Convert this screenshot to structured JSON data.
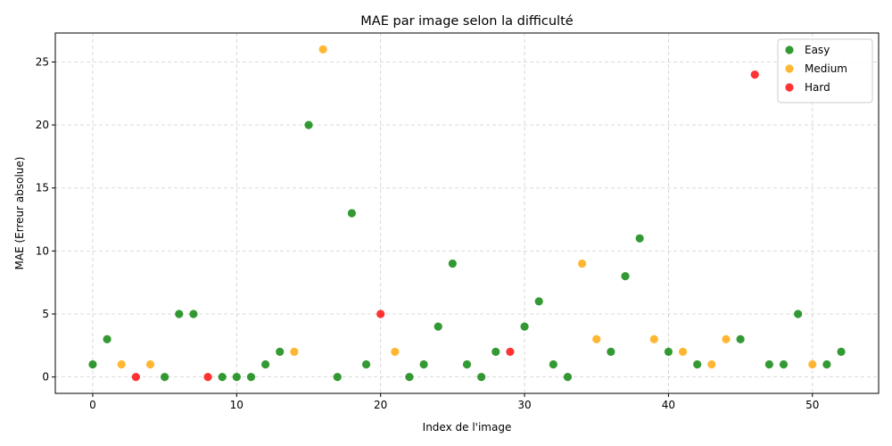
{
  "chart_data": {
    "type": "scatter",
    "title": "MAE par image selon la difficulté",
    "xlabel": "Index de l'image",
    "ylabel": "MAE (Erreur absolue)",
    "xlim": [
      -2.6,
      54.6
    ],
    "ylim": [
      -1.3,
      27.3
    ],
    "x_ticks": [
      0,
      10,
      20,
      30,
      40,
      50
    ],
    "y_ticks": [
      0,
      5,
      10,
      15,
      20,
      25
    ],
    "grid": true,
    "legend_position": "top-right",
    "series": [
      {
        "name": "Easy",
        "color": "#008000",
        "points": [
          [
            0,
            1
          ],
          [
            1,
            3
          ],
          [
            5,
            0
          ],
          [
            6,
            5
          ],
          [
            7,
            5
          ],
          [
            9,
            0
          ],
          [
            10,
            0
          ],
          [
            11,
            0
          ],
          [
            12,
            1
          ],
          [
            13,
            2
          ],
          [
            15,
            20
          ],
          [
            17,
            0
          ],
          [
            18,
            13
          ],
          [
            19,
            1
          ],
          [
            22,
            0
          ],
          [
            23,
            1
          ],
          [
            24,
            4
          ],
          [
            25,
            9
          ],
          [
            26,
            1
          ],
          [
            27,
            0
          ],
          [
            28,
            2
          ],
          [
            30,
            4
          ],
          [
            31,
            6
          ],
          [
            32,
            1
          ],
          [
            33,
            0
          ],
          [
            36,
            2
          ],
          [
            37,
            8
          ],
          [
            38,
            11
          ],
          [
            40,
            2
          ],
          [
            42,
            1
          ],
          [
            45,
            3
          ],
          [
            47,
            1
          ],
          [
            48,
            1
          ],
          [
            49,
            5
          ],
          [
            51,
            1
          ],
          [
            52,
            2
          ]
        ]
      },
      {
        "name": "Medium",
        "color": "#ffa500",
        "points": [
          [
            2,
            1
          ],
          [
            4,
            1
          ],
          [
            14,
            2
          ],
          [
            16,
            26
          ],
          [
            21,
            2
          ],
          [
            34,
            9
          ],
          [
            35,
            3
          ],
          [
            39,
            3
          ],
          [
            41,
            2
          ],
          [
            43,
            1
          ],
          [
            44,
            3
          ],
          [
            50,
            1
          ]
        ]
      },
      {
        "name": "Hard",
        "color": "#ff0000",
        "points": [
          [
            3,
            0
          ],
          [
            8,
            0
          ],
          [
            20,
            5
          ],
          [
            29,
            2
          ],
          [
            46,
            24
          ]
        ]
      }
    ]
  }
}
